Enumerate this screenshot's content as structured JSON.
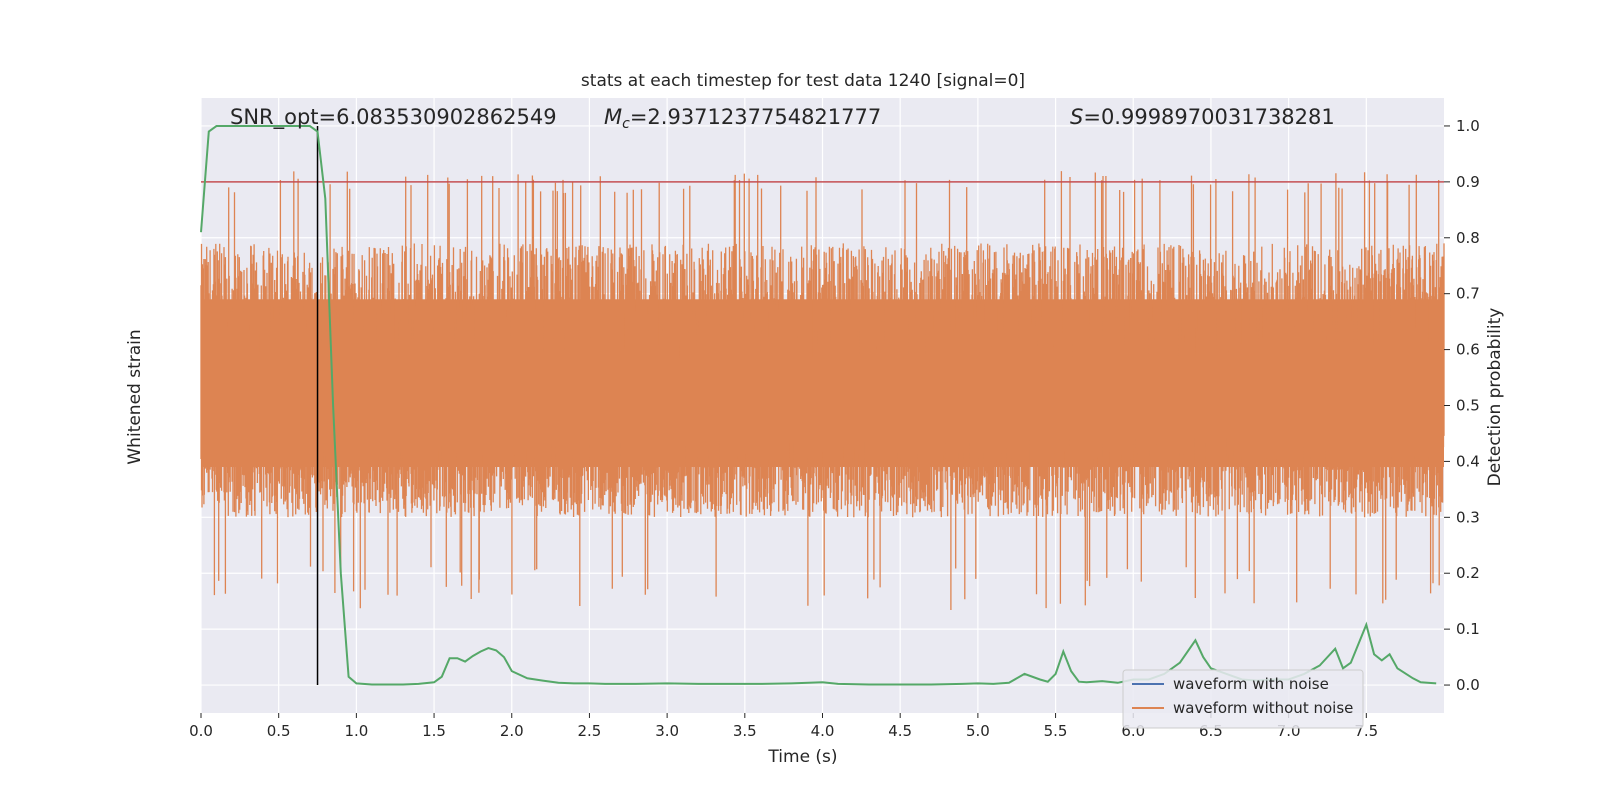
{
  "chart_data": {
    "type": "line",
    "title": "stats at each timestep for test data 1240 [signal=0]",
    "xlabel": "Time (s)",
    "ylabel_left": "Whitened strain",
    "ylabel_right": "Detection probability",
    "xlim": [
      0.0,
      8.0
    ],
    "ylim_right": [
      -0.05,
      1.05
    ],
    "xticks": [
      "0.0",
      "0.5",
      "1.0",
      "1.5",
      "2.0",
      "2.5",
      "3.0",
      "3.5",
      "4.0",
      "4.5",
      "5.0",
      "5.5",
      "6.0",
      "6.5",
      "7.0",
      "7.5"
    ],
    "yticks_right": [
      "0.0",
      "0.1",
      "0.2",
      "0.3",
      "0.4",
      "0.5",
      "0.6",
      "0.7",
      "0.8",
      "0.9",
      "1.0"
    ],
    "grid": true,
    "annotations": {
      "snr": "SNR_opt=6.083530902862549",
      "mc_symbol": "M",
      "mc_sub": "c",
      "mc_value": "=2.9371237754821777",
      "s_symbol": "S",
      "s_value": "=0.9998970031738281"
    },
    "threshold": 0.9,
    "marker_time": 0.75,
    "legend": {
      "position": "lower-right",
      "entries": [
        {
          "label": "waveform with noise",
          "color": "#4c72b0"
        },
        {
          "label": "waveform without noise",
          "color": "#dd8452"
        }
      ]
    },
    "series": [
      {
        "role": "detection-probability",
        "color": "#55a868",
        "x": [
          0.0,
          0.05,
          0.1,
          0.15,
          0.2,
          0.25,
          0.3,
          0.35,
          0.4,
          0.45,
          0.5,
          0.55,
          0.6,
          0.65,
          0.7,
          0.75,
          0.8,
          0.85,
          0.9,
          0.95,
          1.0,
          1.1,
          1.2,
          1.3,
          1.4,
          1.5,
          1.55,
          1.6,
          1.65,
          1.7,
          1.75,
          1.8,
          1.85,
          1.9,
          1.95,
          2.0,
          2.1,
          2.2,
          2.3,
          2.4,
          2.5,
          2.6,
          2.8,
          3.0,
          3.2,
          3.4,
          3.6,
          3.8,
          4.0,
          4.1,
          4.3,
          4.5,
          4.7,
          4.9,
          5.0,
          5.1,
          5.2,
          5.3,
          5.4,
          5.45,
          5.5,
          5.55,
          5.6,
          5.65,
          5.7,
          5.8,
          5.9,
          6.0,
          6.1,
          6.2,
          6.3,
          6.4,
          6.45,
          6.5,
          6.6,
          6.7,
          6.8,
          6.9,
          7.0,
          7.1,
          7.2,
          7.3,
          7.35,
          7.4,
          7.5,
          7.55,
          7.6,
          7.65,
          7.7,
          7.8,
          7.85,
          7.95
        ],
        "y": [
          0.81,
          0.99,
          1.0,
          1.0,
          1.0,
          1.0,
          1.0,
          1.0,
          1.0,
          1.0,
          1.0,
          1.0,
          1.0,
          1.0,
          1.0,
          0.99,
          0.87,
          0.5,
          0.2,
          0.015,
          0.003,
          0.001,
          0.001,
          0.001,
          0.002,
          0.005,
          0.015,
          0.048,
          0.048,
          0.042,
          0.052,
          0.06,
          0.066,
          0.062,
          0.05,
          0.025,
          0.012,
          0.008,
          0.004,
          0.003,
          0.003,
          0.002,
          0.002,
          0.003,
          0.002,
          0.002,
          0.002,
          0.003,
          0.005,
          0.002,
          0.001,
          0.001,
          0.001,
          0.002,
          0.003,
          0.002,
          0.004,
          0.02,
          0.01,
          0.006,
          0.02,
          0.06,
          0.025,
          0.006,
          0.005,
          0.007,
          0.004,
          0.01,
          0.01,
          0.02,
          0.04,
          0.08,
          0.05,
          0.03,
          0.02,
          0.01,
          0.008,
          0.01,
          0.01,
          0.02,
          0.035,
          0.065,
          0.03,
          0.04,
          0.108,
          0.055,
          0.044,
          0.055,
          0.03,
          0.012,
          0.005,
          0.003
        ]
      }
    ]
  }
}
